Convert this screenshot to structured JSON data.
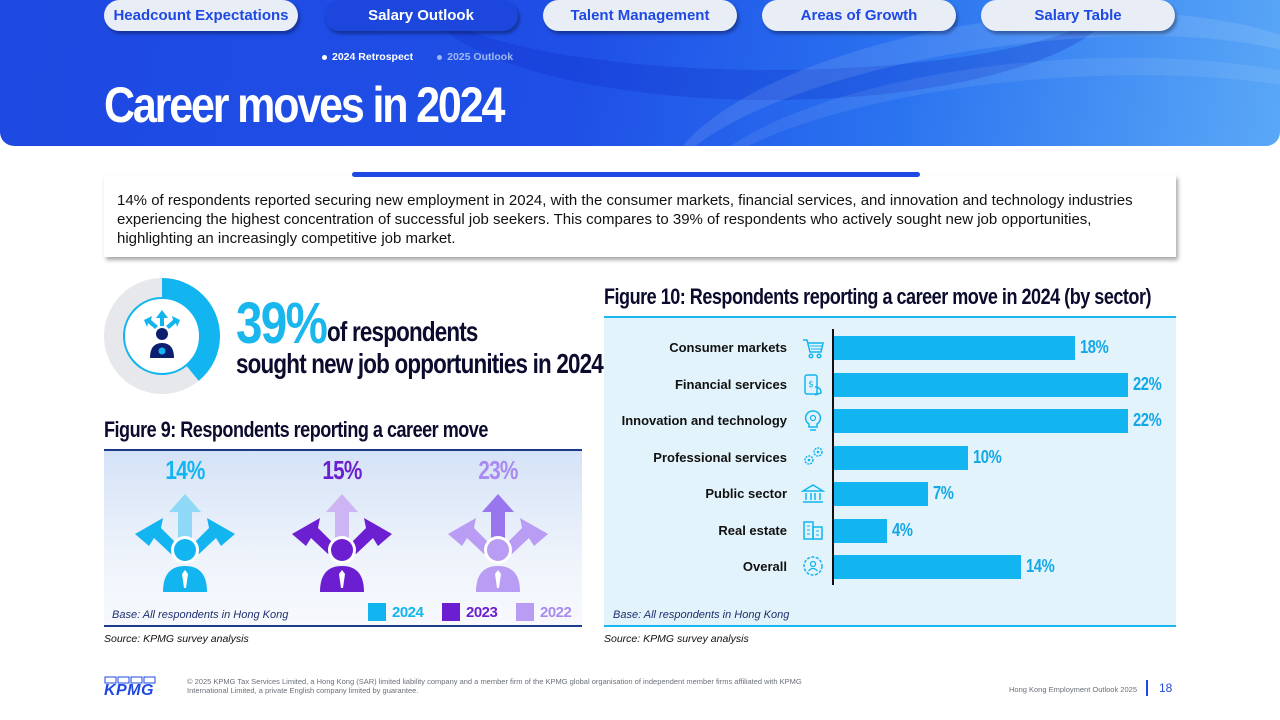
{
  "nav": {
    "tabs": [
      {
        "label": "Headcount Expectations",
        "active": false
      },
      {
        "label": "Salary Outlook",
        "active": true
      },
      {
        "label": "Talent Management",
        "active": false
      },
      {
        "label": "Areas of Growth",
        "active": false
      },
      {
        "label": "Salary Table",
        "active": false
      }
    ],
    "subtabs": [
      {
        "label": "2024 Retrospect",
        "active": true
      },
      {
        "label": "2025 Outlook",
        "active": false
      }
    ]
  },
  "page_title": "Career moves in 2024",
  "intro_text": "14% of respondents reported securing new employment in 2024, with the consumer markets, financial services, and innovation and technology industries experiencing the highest concentration of successful job seekers. This compares to 39% of respondents who actively sought new job opportunities, highlighting an increasingly competitive job market.",
  "highlight": {
    "value": "39%",
    "fraction": 0.39,
    "line1": "of respondents",
    "line2": "sought new job opportunities in 2024"
  },
  "figure9": {
    "title": "Figure 9: Respondents reporting a career move",
    "base": "Base: All respondents in Hong Kong",
    "source": "Source: KPMG survey analysis",
    "items": [
      {
        "year": "2024",
        "value": "14%",
        "color": "#12b5f0",
        "arrow_color": "#8fd8f6"
      },
      {
        "year": "2023",
        "value": "15%",
        "color": "#6c1fd1",
        "arrow_color": "#cdb4f3"
      },
      {
        "year": "2022",
        "value": "23%",
        "color": "#a98af0",
        "arrow_color": "#b99cf3"
      }
    ]
  },
  "chart_data": {
    "type": "bar",
    "orientation": "horizontal",
    "title": "Figure 10: Respondents reporting a career move in 2024  (by sector)",
    "categories": [
      "Consumer markets",
      "Financial services",
      "Innovation and technology",
      "Professional services",
      "Public sector",
      "Real estate",
      "Overall"
    ],
    "values": [
      18,
      22,
      22,
      10,
      7,
      4,
      14
    ],
    "value_labels": [
      "18%",
      "22%",
      "22%",
      "10%",
      "7%",
      "4%",
      "14%"
    ],
    "icons": [
      "cart-icon",
      "finance-phone-icon",
      "lightbulb-gear-icon",
      "gears-icon",
      "bank-icon",
      "building-icon",
      "gear-people-icon"
    ],
    "xlim": [
      0,
      22
    ],
    "bar_color": "#12b5f0",
    "base": "Base: All respondents in Hong Kong",
    "source": "Source: KPMG survey analysis"
  },
  "footer": {
    "logo": "KPMG",
    "legal": "© 2025 KPMG Tax Services Limited, a Hong Kong (SAR) limited liability company and a member firm of the KPMG global organisation of independent member firms affiliated with KPMG International Limited, a private English company limited by guarantee.",
    "report_name": "Hong Kong Employment Outlook 2025",
    "page_number": "18"
  },
  "colors": {
    "brand_blue": "#1e49e2",
    "accent_cyan": "#12b5f0",
    "dark_navy": "#0b0b2e"
  }
}
